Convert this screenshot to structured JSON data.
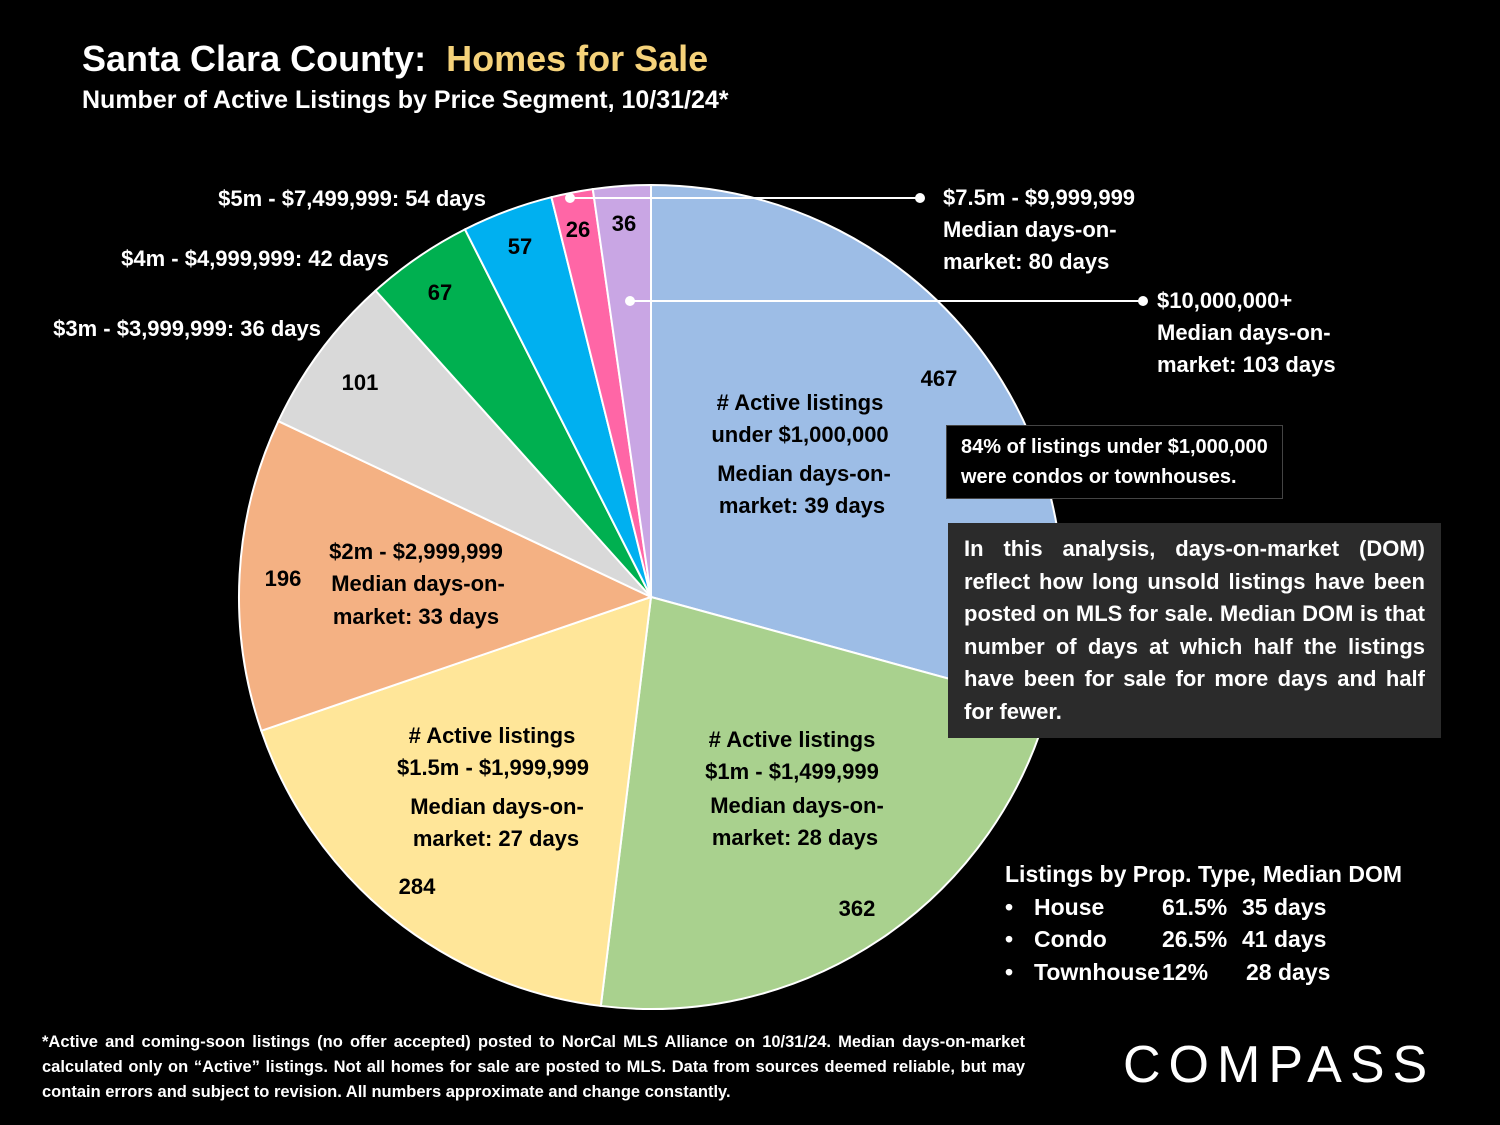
{
  "header": {
    "title_prefix": "Santa Clara County:",
    "title_highlight": "Homes for Sale",
    "subtitle": "Number of Active Listings by Price Segment, 10/31/24*"
  },
  "chart_data": {
    "type": "pie",
    "title": "Santa Clara County: Homes for Sale",
    "subtitle": "Number of Active Listings by Price Segment, 10/31/24*",
    "start": "12 o'clock",
    "direction": "clockwise",
    "slices": [
      {
        "label": "Under $1,000,000",
        "value": 467,
        "median_dom_days": 39,
        "color": "#9dbde6"
      },
      {
        "label": "$1m - $1,499,999",
        "value": 362,
        "median_dom_days": 28,
        "color": "#a9d18e"
      },
      {
        "label": "$1.5m - $1,999,999",
        "value": 284,
        "median_dom_days": 27,
        "color": "#ffe699"
      },
      {
        "label": "$2m - $2,999,999",
        "value": 196,
        "median_dom_days": 33,
        "color": "#f4b183"
      },
      {
        "label": "$3m - $3,999,999",
        "value": 101,
        "median_dom_days": 36,
        "color": "#d9d9d9"
      },
      {
        "label": "$4m - $4,999,999",
        "value": 67,
        "median_dom_days": 42,
        "color": "#00b050"
      },
      {
        "label": "$5m - $7,499,999",
        "value": 57,
        "median_dom_days": 54,
        "color": "#00b0f0"
      },
      {
        "label": "$7.5m - $9,999,999",
        "value": 26,
        "median_dom_days": 80,
        "color": "#ff66a6"
      },
      {
        "label": "$10,000,000+",
        "value": 36,
        "median_dom_days": 103,
        "color": "#c9a6e4"
      }
    ],
    "value_labels": [
      "467",
      "362",
      "284",
      "196",
      "101",
      "67",
      "57",
      "26",
      "36"
    ]
  },
  "slice_texts": {
    "under1m": [
      "# Active listings",
      "under $1,000,000",
      "Median days-on-",
      "market:  39 days"
    ],
    "s1m": [
      "# Active listings",
      "$1m - $1,499,999",
      "Median days-on-",
      "market:  28 days"
    ],
    "s15m": [
      "# Active listings",
      "$1.5m - $1,999,999",
      "Median days-on-",
      "market:  27 days"
    ],
    "s2m": [
      "$2m - $2,999,999",
      "Median days-on-",
      "market:  33 days"
    ]
  },
  "outside_labels": {
    "s3m": "$3m - $3,999,999: 36 days",
    "s4m": "$4m - $4,999,999: 42 days",
    "s5m": "$5m - $7,499,999: 54 days"
  },
  "callouts": {
    "s75m": [
      "$7.5m - $9,999,999",
      "Median days-on-",
      "market:  80 days"
    ],
    "s10m": [
      "$10,000,000+",
      "Median days-on-",
      "market:  103 days"
    ]
  },
  "notes": {
    "condo_note": [
      "84% of listings under $1,000,000",
      "were condos or townhouses."
    ],
    "dom_note": "In this analysis, days-on-market (DOM) reflect how long unsold listings have been posted on MLS for sale. Median DOM is that number of days at which half the listings have been for sale for more days and half for fewer."
  },
  "legend": {
    "title": "Listings by Prop. Type, Median DOM",
    "items": [
      {
        "type": "House",
        "pct": "61.5%",
        "dom": "35 days"
      },
      {
        "type": "Condo",
        "pct": "26.5%",
        "dom": "41 days"
      },
      {
        "type": "Townhouse",
        "pct": "12%",
        "dom": "28 days"
      }
    ]
  },
  "footnote": "*Active and coming-soon listings (no offer accepted) posted to NorCal MLS Alliance on 10/31/24. Median days-on-market calculated only on “Active” listings. Not all homes for sale are posted to MLS. Data from sources deemed reliable, but may contain errors and subject to revision. All numbers approximate and change constantly.",
  "logo": "COMPASS",
  "bullet": "•"
}
